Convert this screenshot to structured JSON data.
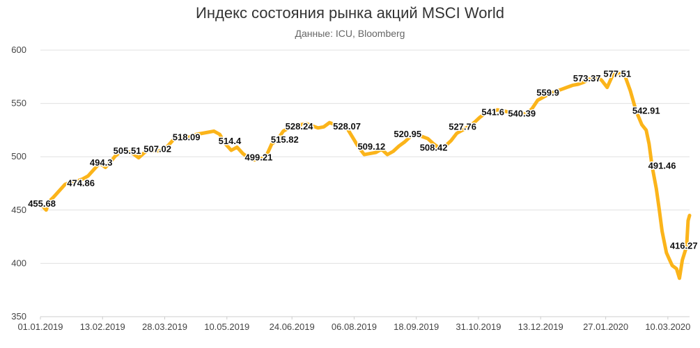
{
  "chart_data": {
    "type": "line",
    "title": "Индекс состояния рынка акций MSCI World",
    "subtitle": "Данные: ICU, Bloomberg",
    "xlabel": "",
    "ylabel": "",
    "ylim": [
      350,
      600
    ],
    "yticks": [
      350,
      400,
      450,
      500,
      550,
      600
    ],
    "xlim": [
      "2019-01-01",
      "2020-03-25"
    ],
    "xticks": [
      "01.01.2019",
      "13.02.2019",
      "28.03.2019",
      "10.05.2019",
      "24.06.2019",
      "06.08.2019",
      "18.09.2019",
      "31.10.2019",
      "13.12.2019",
      "27.01.2020",
      "10.03.2020"
    ],
    "grid": true,
    "legend": "none",
    "colors": {
      "line": "#FBB41A",
      "grid": "#E0E0E0",
      "axis": "#CCCCCC"
    },
    "series": [
      {
        "x": [
          "2019-01-01",
          "2019-01-03",
          "2019-01-05",
          "2019-01-07",
          "2019-01-10",
          "2019-01-14",
          "2019-01-18",
          "2019-01-22",
          "2019-01-26",
          "2019-01-30",
          "2019-02-03",
          "2019-02-07",
          "2019-02-11",
          "2019-02-15",
          "2019-02-19",
          "2019-02-22",
          "2019-02-26",
          "2019-03-02",
          "2019-03-06",
          "2019-03-10",
          "2019-03-14",
          "2019-03-18",
          "2019-03-22",
          "2019-03-26",
          "2019-03-30",
          "2019-04-03",
          "2019-04-07",
          "2019-04-11",
          "2019-04-15",
          "2019-04-19",
          "2019-04-23",
          "2019-04-27",
          "2019-05-01",
          "2019-05-05",
          "2019-05-09",
          "2019-05-13",
          "2019-05-17",
          "2019-05-21",
          "2019-05-25",
          "2019-05-29",
          "2019-06-02",
          "2019-06-06",
          "2019-06-10",
          "2019-06-14",
          "2019-06-18",
          "2019-06-22",
          "2019-06-26",
          "2019-06-30",
          "2019-07-04",
          "2019-07-08",
          "2019-07-12",
          "2019-07-16",
          "2019-07-20",
          "2019-07-24",
          "2019-07-28",
          "2019-08-01",
          "2019-08-05",
          "2019-08-09",
          "2019-08-13",
          "2019-08-17",
          "2019-08-21",
          "2019-08-25",
          "2019-08-29",
          "2019-09-02",
          "2019-09-06",
          "2019-09-10",
          "2019-09-14",
          "2019-09-18",
          "2019-09-22",
          "2019-09-26",
          "2019-09-30",
          "2019-10-04",
          "2019-10-08",
          "2019-10-12",
          "2019-10-16",
          "2019-10-20",
          "2019-10-24",
          "2019-10-28",
          "2019-11-01",
          "2019-11-05",
          "2019-11-09",
          "2019-11-13",
          "2019-11-17",
          "2019-11-21",
          "2019-11-25",
          "2019-11-29",
          "2019-12-03",
          "2019-12-07",
          "2019-12-11",
          "2019-12-15",
          "2019-12-19",
          "2019-12-23",
          "2019-12-27",
          "2019-12-31",
          "2020-01-04",
          "2020-01-08",
          "2020-01-12",
          "2020-01-16",
          "2020-01-20",
          "2020-01-24",
          "2020-01-28",
          "2020-02-01",
          "2020-02-05",
          "2020-02-09",
          "2020-02-13",
          "2020-02-17",
          "2020-02-21",
          "2020-02-24",
          "2020-02-26",
          "2020-02-28",
          "2020-03-02",
          "2020-03-04",
          "2020-03-06",
          "2020-03-09",
          "2020-03-11",
          "2020-03-13",
          "2020-03-16",
          "2020-03-18",
          "2020-03-20",
          "2020-03-23",
          "2020-03-24",
          "2020-03-25"
        ],
        "values": [
          456,
          453,
          450,
          458,
          462,
          468,
          474,
          476,
          477,
          479,
          482,
          488,
          494,
          490,
          496,
          501,
          505,
          505,
          503,
          499,
          504,
          507,
          505,
          506,
          510,
          516,
          518,
          517,
          519,
          521,
          522,
          523,
          524,
          521,
          512,
          506,
          509,
          503,
          499,
          497,
          498,
          500,
          512,
          516,
          524,
          527,
          528,
          530,
          531,
          529,
          527,
          528,
          532,
          530,
          528,
          527,
          518,
          509,
          502,
          503,
          504,
          507,
          502,
          505,
          510,
          514,
          519,
          521,
          519,
          517,
          512,
          508,
          510,
          515,
          522,
          525,
          528,
          532,
          537,
          541,
          542,
          544,
          543,
          542,
          540,
          541,
          540,
          545,
          553,
          556,
          559,
          561,
          563,
          565,
          567,
          568,
          570,
          573,
          575,
          572,
          565,
          577,
          578,
          577,
          562,
          543,
          530,
          525,
          512,
          492,
          470,
          451,
          430,
          410,
          404,
          398,
          395,
          386,
          403,
          416,
          440,
          445
        ]
      }
    ],
    "annotations": [
      {
        "x": "2019-01-02",
        "y": 455.68,
        "text": "455.68"
      },
      {
        "x": "2019-01-29",
        "y": 474.86,
        "text": "474.86"
      },
      {
        "x": "2019-02-12",
        "y": 494.3,
        "text": "494.3"
      },
      {
        "x": "2019-03-02",
        "y": 505.51,
        "text": "505.51"
      },
      {
        "x": "2019-03-23",
        "y": 507.02,
        "text": "507.02"
      },
      {
        "x": "2019-04-12",
        "y": 518.09,
        "text": "518.09"
      },
      {
        "x": "2019-05-12",
        "y": 514.4,
        "text": "514.4"
      },
      {
        "x": "2019-06-01",
        "y": 499.21,
        "text": "499.21"
      },
      {
        "x": "2019-06-19",
        "y": 515.82,
        "text": "515.82"
      },
      {
        "x": "2019-06-29",
        "y": 528.24,
        "text": "528.24"
      },
      {
        "x": "2019-08-01",
        "y": 528.07,
        "text": "528.07"
      },
      {
        "x": "2019-08-18",
        "y": 509.12,
        "text": "509.12"
      },
      {
        "x": "2019-09-12",
        "y": 520.95,
        "text": "520.95"
      },
      {
        "x": "2019-09-30",
        "y": 508.42,
        "text": "508.42"
      },
      {
        "x": "2019-10-20",
        "y": 527.76,
        "text": "527.76"
      },
      {
        "x": "2019-11-10",
        "y": 541.6,
        "text": "541.6"
      },
      {
        "x": "2019-11-30",
        "y": 540.39,
        "text": "540.39"
      },
      {
        "x": "2019-12-18",
        "y": 559.9,
        "text": "559.9"
      },
      {
        "x": "2020-01-14",
        "y": 573.37,
        "text": "573.37"
      },
      {
        "x": "2020-02-04",
        "y": 577.51,
        "text": "577.51"
      },
      {
        "x": "2020-02-24",
        "y": 542.91,
        "text": "542.91"
      },
      {
        "x": "2020-03-06",
        "y": 491.46,
        "text": "491.46"
      },
      {
        "x": "2020-03-21",
        "y": 416.27,
        "text": "416.27"
      }
    ]
  }
}
